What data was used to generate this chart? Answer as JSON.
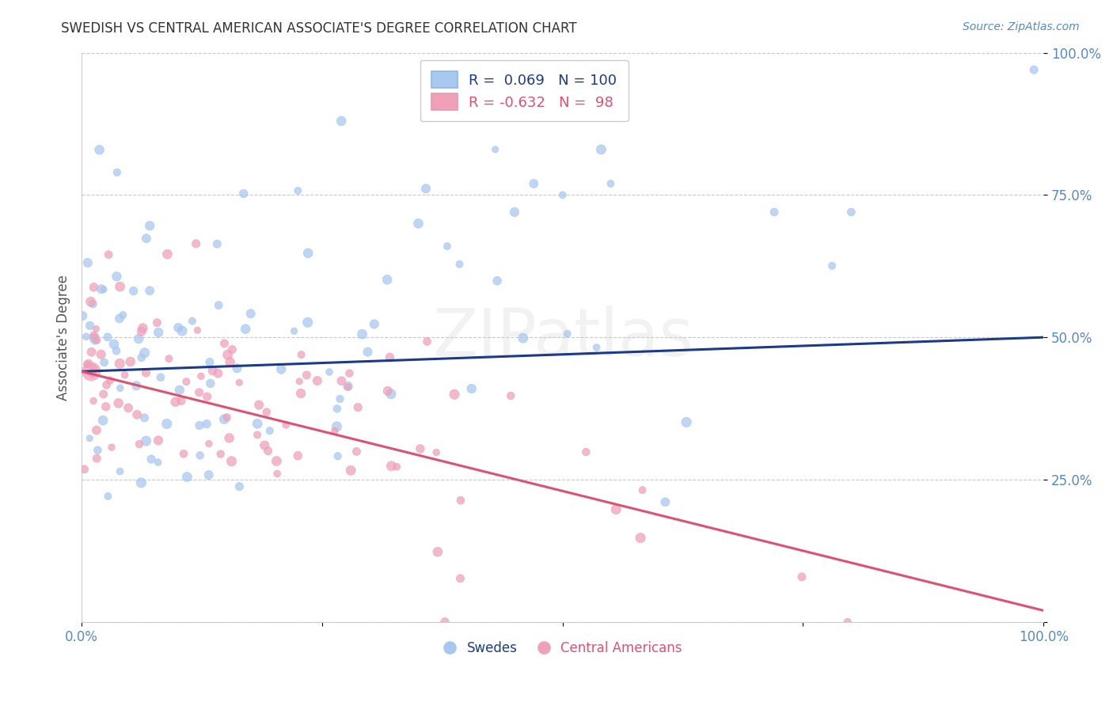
{
  "title": "SWEDISH VS CENTRAL AMERICAN ASSOCIATE'S DEGREE CORRELATION CHART",
  "source": "Source: ZipAtlas.com",
  "ylabel": "Associate's Degree",
  "watermark": "ZIPatlas",
  "blue_color": "#A8C8F0",
  "pink_color": "#F0A0B8",
  "blue_line_color": "#1B3A8C",
  "pink_line_color": "#E05070",
  "tick_color": "#5588CC",
  "grid_color": "#BBBBBB",
  "blue_R": 0.069,
  "pink_R": -0.632,
  "blue_N": 100,
  "pink_N": 98,
  "blue_intercept": 0.44,
  "blue_slope": 0.06,
  "pink_intercept": 0.44,
  "pink_slope": -0.42
}
